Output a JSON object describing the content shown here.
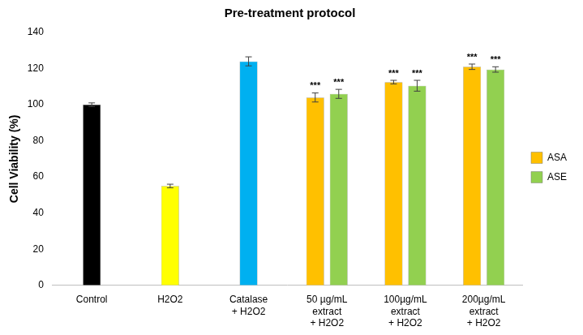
{
  "chart_data": {
    "type": "bar",
    "title": "Pre-treatment protocol",
    "y_label": "Cell Viability (%)",
    "categories": [
      "Control",
      "H2O2",
      "Catalase\n+ H2O2",
      "50 µg/mL\nextract\n+ H2O2",
      "100µg/mL\nextract\n+ H2O2",
      "200µg/mL\nextract\n+ H2O2"
    ],
    "series": [
      {
        "colors": [
          "#000000",
          "#ffff00",
          "#00b0f0",
          null,
          null,
          null
        ],
        "values": [
          100,
          55,
          124,
          null,
          null,
          null
        ],
        "errors": [
          1,
          1,
          2.5,
          null,
          null,
          null
        ]
      },
      {
        "name": "ASA",
        "color": "#ffc000",
        "values": [
          null,
          null,
          null,
          104,
          112.5,
          121
        ],
        "errors": [
          null,
          null,
          null,
          2.5,
          1,
          1.5
        ],
        "annotations": [
          null,
          null,
          null,
          "***",
          "***",
          "***"
        ]
      },
      {
        "name": "ASE",
        "color": "#92d050",
        "values": [
          null,
          null,
          null,
          106,
          110.5,
          119.5
        ],
        "errors": [
          null,
          null,
          null,
          2.5,
          3,
          1.5
        ],
        "annotations": [
          null,
          null,
          null,
          "***",
          "***",
          "***"
        ]
      }
    ],
    "ylim": [
      0,
      140
    ],
    "yticks": [
      0,
      20,
      40,
      60,
      80,
      100,
      120,
      140
    ],
    "grid": false,
    "legend": "right"
  }
}
